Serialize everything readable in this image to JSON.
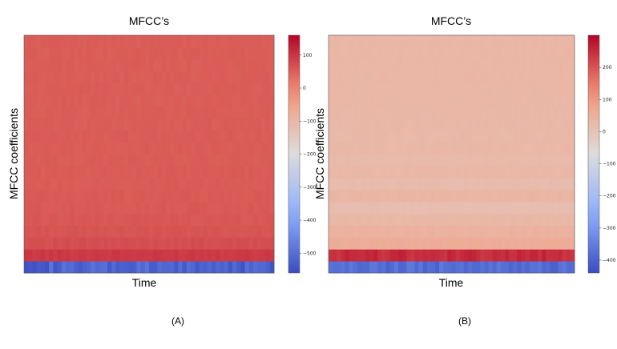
{
  "chart_data": [
    {
      "type": "heatmap",
      "title": "MFCC’s",
      "xlabel": "Time",
      "ylabel": "MFCC coefficients",
      "caption": "(A)",
      "colormap": "coolwarm",
      "clim": [
        -560,
        160
      ],
      "colorbar_ticks": [
        100,
        0,
        -100,
        -200,
        -300,
        -400,
        -500
      ],
      "colorbar_tick_labels": [
        "100",
        "0",
        "−100",
        "−200",
        "−300",
        "−400",
        "−500"
      ],
      "grid": false,
      "n_coefficients": 20,
      "n_frames": 60,
      "coefficient_values_bottom_to_top": [
        -520,
        95,
        70,
        62,
        58,
        56,
        55,
        54,
        54,
        53,
        53,
        53,
        52,
        52,
        52,
        52,
        52,
        52,
        52,
        52
      ]
    },
    {
      "type": "heatmap",
      "title": "MFCC’s",
      "xlabel": "Time",
      "ylabel": "MFCC coefficients",
      "caption": "(B)",
      "colormap": "coolwarm",
      "clim": [
        -440,
        300
      ],
      "colorbar_ticks": [
        200,
        100,
        0,
        -100,
        -200,
        -300,
        -400
      ],
      "colorbar_tick_labels": [
        "200",
        "100",
        "0",
        "−100",
        "−200",
        "−300",
        "−400"
      ],
      "grid": false,
      "n_coefficients": 20,
      "n_frames": 60,
      "coefficient_values_bottom_to_top": [
        -380,
        250,
        60,
        45,
        30,
        15,
        35,
        20,
        30,
        25,
        30,
        28,
        30,
        30,
        32,
        32,
        33,
        33,
        34,
        34
      ]
    }
  ]
}
